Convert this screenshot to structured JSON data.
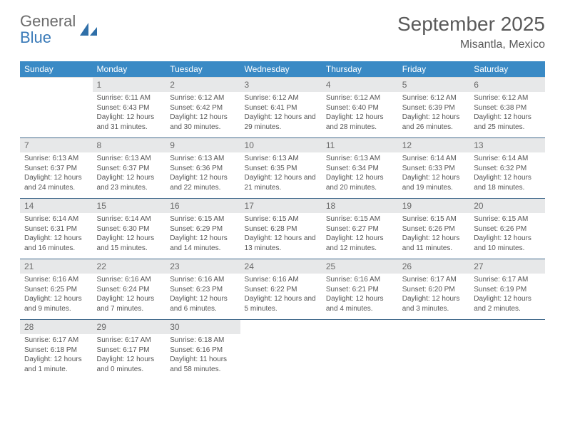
{
  "brand": {
    "word1": "General",
    "word2": "Blue",
    "sail_color": "#2f6fa8"
  },
  "title": "September 2025",
  "location": "Misantla, Mexico",
  "colors": {
    "header_bg": "#3a8ac5",
    "header_text": "#ffffff",
    "daynum_bg": "#e7e8e9",
    "daynum_text": "#6a6a6a",
    "body_text": "#555555",
    "rule": "#426a8c",
    "page_bg": "#ffffff"
  },
  "typography": {
    "title_fontsize": 28,
    "location_fontsize": 16,
    "dow_fontsize": 12,
    "daynum_fontsize": 12,
    "cell_fontsize": 10
  },
  "days_of_week": [
    "Sunday",
    "Monday",
    "Tuesday",
    "Wednesday",
    "Thursday",
    "Friday",
    "Saturday"
  ],
  "weeks": [
    [
      null,
      {
        "n": "1",
        "sunrise": "Sunrise: 6:11 AM",
        "sunset": "Sunset: 6:43 PM",
        "daylight": "Daylight: 12 hours and 31 minutes."
      },
      {
        "n": "2",
        "sunrise": "Sunrise: 6:12 AM",
        "sunset": "Sunset: 6:42 PM",
        "daylight": "Daylight: 12 hours and 30 minutes."
      },
      {
        "n": "3",
        "sunrise": "Sunrise: 6:12 AM",
        "sunset": "Sunset: 6:41 PM",
        "daylight": "Daylight: 12 hours and 29 minutes."
      },
      {
        "n": "4",
        "sunrise": "Sunrise: 6:12 AM",
        "sunset": "Sunset: 6:40 PM",
        "daylight": "Daylight: 12 hours and 28 minutes."
      },
      {
        "n": "5",
        "sunrise": "Sunrise: 6:12 AM",
        "sunset": "Sunset: 6:39 PM",
        "daylight": "Daylight: 12 hours and 26 minutes."
      },
      {
        "n": "6",
        "sunrise": "Sunrise: 6:12 AM",
        "sunset": "Sunset: 6:38 PM",
        "daylight": "Daylight: 12 hours and 25 minutes."
      }
    ],
    [
      {
        "n": "7",
        "sunrise": "Sunrise: 6:13 AM",
        "sunset": "Sunset: 6:37 PM",
        "daylight": "Daylight: 12 hours and 24 minutes."
      },
      {
        "n": "8",
        "sunrise": "Sunrise: 6:13 AM",
        "sunset": "Sunset: 6:37 PM",
        "daylight": "Daylight: 12 hours and 23 minutes."
      },
      {
        "n": "9",
        "sunrise": "Sunrise: 6:13 AM",
        "sunset": "Sunset: 6:36 PM",
        "daylight": "Daylight: 12 hours and 22 minutes."
      },
      {
        "n": "10",
        "sunrise": "Sunrise: 6:13 AM",
        "sunset": "Sunset: 6:35 PM",
        "daylight": "Daylight: 12 hours and 21 minutes."
      },
      {
        "n": "11",
        "sunrise": "Sunrise: 6:13 AM",
        "sunset": "Sunset: 6:34 PM",
        "daylight": "Daylight: 12 hours and 20 minutes."
      },
      {
        "n": "12",
        "sunrise": "Sunrise: 6:14 AM",
        "sunset": "Sunset: 6:33 PM",
        "daylight": "Daylight: 12 hours and 19 minutes."
      },
      {
        "n": "13",
        "sunrise": "Sunrise: 6:14 AM",
        "sunset": "Sunset: 6:32 PM",
        "daylight": "Daylight: 12 hours and 18 minutes."
      }
    ],
    [
      {
        "n": "14",
        "sunrise": "Sunrise: 6:14 AM",
        "sunset": "Sunset: 6:31 PM",
        "daylight": "Daylight: 12 hours and 16 minutes."
      },
      {
        "n": "15",
        "sunrise": "Sunrise: 6:14 AM",
        "sunset": "Sunset: 6:30 PM",
        "daylight": "Daylight: 12 hours and 15 minutes."
      },
      {
        "n": "16",
        "sunrise": "Sunrise: 6:15 AM",
        "sunset": "Sunset: 6:29 PM",
        "daylight": "Daylight: 12 hours and 14 minutes."
      },
      {
        "n": "17",
        "sunrise": "Sunrise: 6:15 AM",
        "sunset": "Sunset: 6:28 PM",
        "daylight": "Daylight: 12 hours and 13 minutes."
      },
      {
        "n": "18",
        "sunrise": "Sunrise: 6:15 AM",
        "sunset": "Sunset: 6:27 PM",
        "daylight": "Daylight: 12 hours and 12 minutes."
      },
      {
        "n": "19",
        "sunrise": "Sunrise: 6:15 AM",
        "sunset": "Sunset: 6:26 PM",
        "daylight": "Daylight: 12 hours and 11 minutes."
      },
      {
        "n": "20",
        "sunrise": "Sunrise: 6:15 AM",
        "sunset": "Sunset: 6:26 PM",
        "daylight": "Daylight: 12 hours and 10 minutes."
      }
    ],
    [
      {
        "n": "21",
        "sunrise": "Sunrise: 6:16 AM",
        "sunset": "Sunset: 6:25 PM",
        "daylight": "Daylight: 12 hours and 9 minutes."
      },
      {
        "n": "22",
        "sunrise": "Sunrise: 6:16 AM",
        "sunset": "Sunset: 6:24 PM",
        "daylight": "Daylight: 12 hours and 7 minutes."
      },
      {
        "n": "23",
        "sunrise": "Sunrise: 6:16 AM",
        "sunset": "Sunset: 6:23 PM",
        "daylight": "Daylight: 12 hours and 6 minutes."
      },
      {
        "n": "24",
        "sunrise": "Sunrise: 6:16 AM",
        "sunset": "Sunset: 6:22 PM",
        "daylight": "Daylight: 12 hours and 5 minutes."
      },
      {
        "n": "25",
        "sunrise": "Sunrise: 6:16 AM",
        "sunset": "Sunset: 6:21 PM",
        "daylight": "Daylight: 12 hours and 4 minutes."
      },
      {
        "n": "26",
        "sunrise": "Sunrise: 6:17 AM",
        "sunset": "Sunset: 6:20 PM",
        "daylight": "Daylight: 12 hours and 3 minutes."
      },
      {
        "n": "27",
        "sunrise": "Sunrise: 6:17 AM",
        "sunset": "Sunset: 6:19 PM",
        "daylight": "Daylight: 12 hours and 2 minutes."
      }
    ],
    [
      {
        "n": "28",
        "sunrise": "Sunrise: 6:17 AM",
        "sunset": "Sunset: 6:18 PM",
        "daylight": "Daylight: 12 hours and 1 minute."
      },
      {
        "n": "29",
        "sunrise": "Sunrise: 6:17 AM",
        "sunset": "Sunset: 6:17 PM",
        "daylight": "Daylight: 12 hours and 0 minutes."
      },
      {
        "n": "30",
        "sunrise": "Sunrise: 6:18 AM",
        "sunset": "Sunset: 6:16 PM",
        "daylight": "Daylight: 11 hours and 58 minutes."
      },
      null,
      null,
      null,
      null
    ]
  ]
}
